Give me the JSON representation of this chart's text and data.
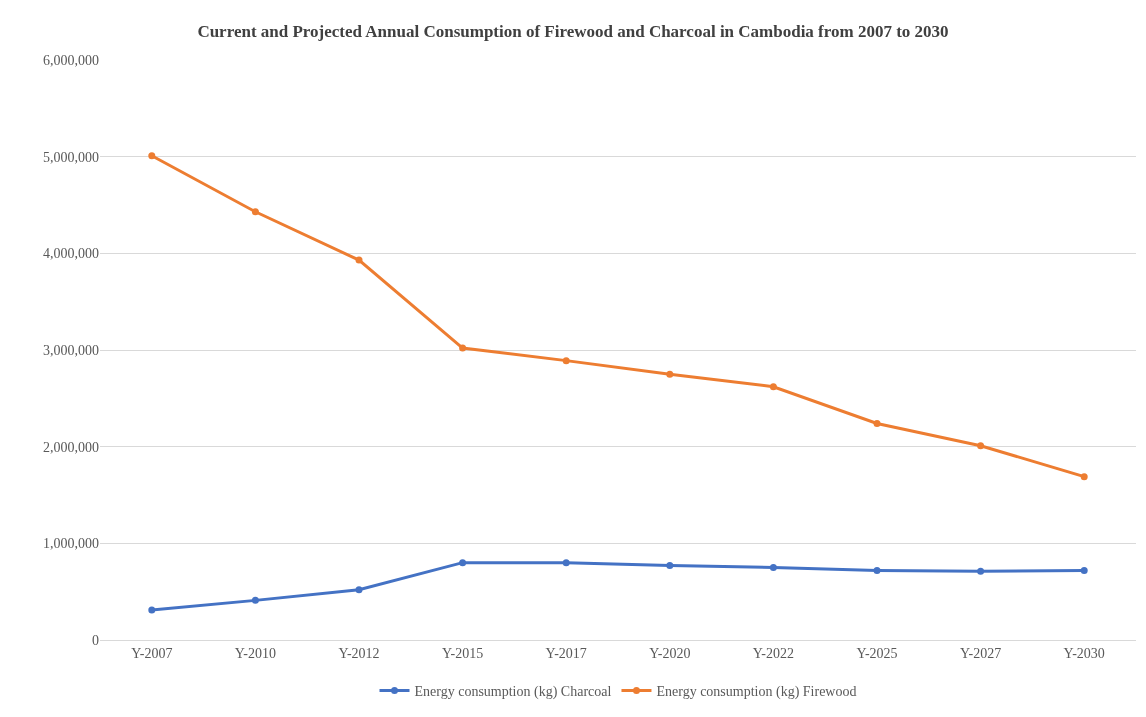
{
  "chart_data": {
    "type": "line",
    "title": "Current and Projected Annual Consumption of Firewood and Charcoal in Cambodia from 2007 to 2030",
    "categories": [
      "Y-2007",
      "Y-2010",
      "Y-2012",
      "Y-2015",
      "Y-2017",
      "Y-2020",
      "Y-2022",
      "Y-2025",
      "Y-2027",
      "Y-2030"
    ],
    "series": [
      {
        "name": "Energy consumption (kg) Charcoal",
        "color": "#4472c4",
        "values": [
          310000,
          410000,
          520000,
          800000,
          800000,
          770000,
          750000,
          720000,
          710000,
          720000
        ]
      },
      {
        "name": "Energy consumption (kg) Firewood",
        "color": "#ed7d31",
        "values": [
          5010000,
          4430000,
          3930000,
          3020000,
          2890000,
          2750000,
          2620000,
          2240000,
          2010000,
          1690000
        ]
      }
    ],
    "ylim": [
      0,
      6000000
    ],
    "yticks": [
      {
        "value": 0,
        "label": "0"
      },
      {
        "value": 1000000,
        "label": "1,000,000"
      },
      {
        "value": 2000000,
        "label": "2,000,000"
      },
      {
        "value": 3000000,
        "label": "3,000,000"
      },
      {
        "value": 4000000,
        "label": "4,000,000"
      },
      {
        "value": 5000000,
        "label": "5,000,000"
      },
      {
        "value": 6000000,
        "label": "6,000,000"
      }
    ],
    "grid": "y",
    "legend": "bottom",
    "marker": "circle",
    "line_style": "solid"
  }
}
